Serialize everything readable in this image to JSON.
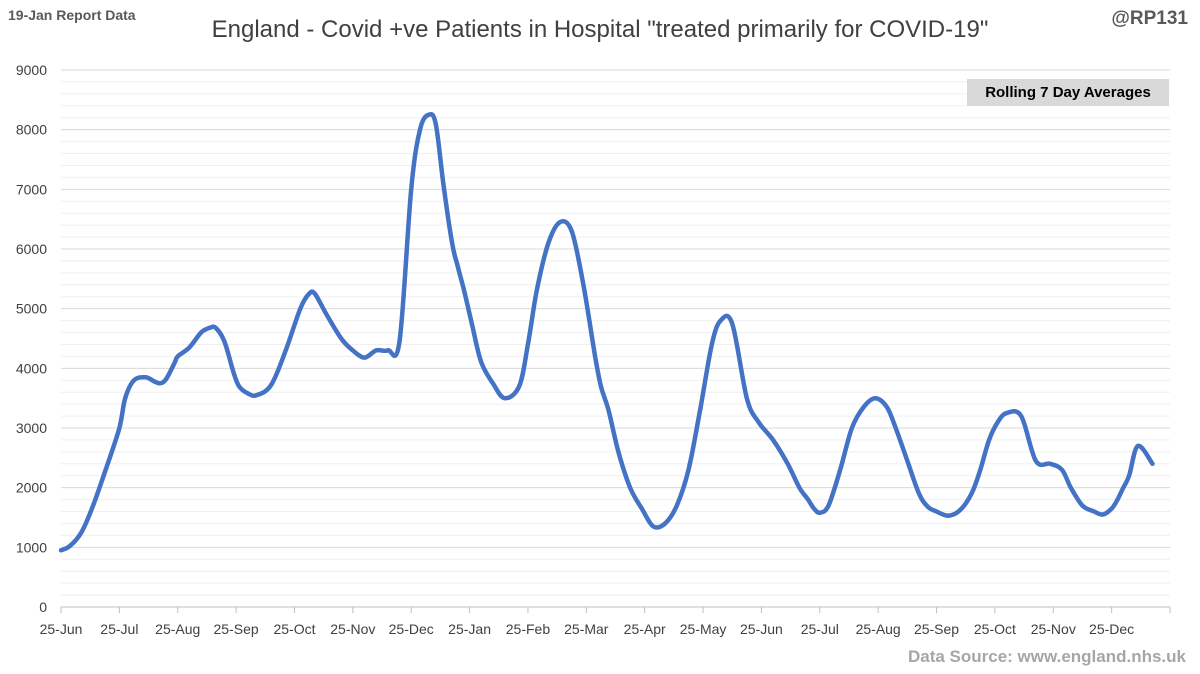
{
  "header": {
    "report_label": "19-Jan Report Data",
    "handle": "@RP131"
  },
  "footer": {
    "source": "Data Source: www.england.nhs.uk"
  },
  "chart_data": {
    "type": "line",
    "title": "England - Covid +ve Patients in Hospital \"treated primarily for COVID-19\"",
    "annotation": "Rolling 7 Day Averages",
    "xlabel": "",
    "ylabel": "",
    "ylim": [
      0,
      9000
    ],
    "y_ticks": [
      0,
      1000,
      2000,
      3000,
      4000,
      5000,
      6000,
      7000,
      8000,
      9000
    ],
    "grid": true,
    "line_color": "#4472c4",
    "x_tick_labels": [
      "25-Jun",
      "25-Jul",
      "25-Aug",
      "25-Sep",
      "25-Oct",
      "25-Nov",
      "25-Dec",
      "25-Jan",
      "25-Feb",
      "25-Mar",
      "25-Apr",
      "25-May",
      "25-Jun",
      "25-Jul",
      "25-Aug",
      "25-Sep",
      "25-Oct",
      "25-Nov",
      "25-Dec"
    ],
    "x_unit": "months since 25-Jun",
    "x_max": 19,
    "series": [
      {
        "name": "Rolling 7 Day Average",
        "x": [
          0,
          0.15,
          0.35,
          0.55,
          0.8,
          1.0,
          1.1,
          1.25,
          1.45,
          1.6,
          1.7,
          1.8,
          1.95,
          2.0,
          2.2,
          2.4,
          2.55,
          2.65,
          2.8,
          2.95,
          3.05,
          3.2,
          3.35,
          3.6,
          3.85,
          4.1,
          4.25,
          4.35,
          4.55,
          4.8,
          5.0,
          5.2,
          5.4,
          5.6,
          5.8,
          6.0,
          6.15,
          6.3,
          6.42,
          6.55,
          6.7,
          6.8,
          6.92,
          7.05,
          7.2,
          7.4,
          7.6,
          7.85,
          8.0,
          8.15,
          8.35,
          8.55,
          8.75,
          8.95,
          9.15,
          9.25,
          9.38,
          9.55,
          9.75,
          9.95,
          10.15,
          10.35,
          10.55,
          10.75,
          10.95,
          11.15,
          11.3,
          11.5,
          11.75,
          11.95,
          12.2,
          12.45,
          12.65,
          12.8,
          12.9,
          13.0,
          13.15,
          13.35,
          13.55,
          13.75,
          13.95,
          14.15,
          14.3,
          14.5,
          14.7,
          14.85,
          15.0,
          15.2,
          15.4,
          15.6,
          15.75,
          15.9,
          16.05,
          16.2,
          16.45,
          16.7,
          16.95,
          17.15,
          17.3,
          17.5,
          17.7,
          17.85,
          18.0,
          18.1,
          18.2,
          18.3,
          18.45,
          18.7
        ],
        "values": [
          950,
          1020,
          1250,
          1700,
          2400,
          3000,
          3500,
          3800,
          3850,
          3780,
          3750,
          3820,
          4100,
          4200,
          4350,
          4600,
          4680,
          4680,
          4450,
          3950,
          3700,
          3580,
          3550,
          3720,
          4300,
          5000,
          5250,
          5250,
          4900,
          4500,
          4300,
          4180,
          4300,
          4300,
          4450,
          7000,
          8000,
          8250,
          8100,
          7100,
          6100,
          5700,
          5250,
          4700,
          4100,
          3750,
          3500,
          3700,
          4400,
          5300,
          6100,
          6450,
          6300,
          5400,
          4200,
          3700,
          3300,
          2600,
          2000,
          1650,
          1350,
          1400,
          1700,
          2300,
          3300,
          4400,
          4800,
          4750,
          3500,
          3100,
          2800,
          2400,
          2000,
          1800,
          1650,
          1580,
          1700,
          2300,
          3000,
          3350,
          3500,
          3350,
          3000,
          2450,
          1900,
          1680,
          1600,
          1530,
          1620,
          1900,
          2300,
          2800,
          3100,
          3250,
          3200,
          2450,
          2400,
          2300,
          2000,
          1700,
          1600,
          1550,
          1650,
          1800,
          2000,
          2200,
          2700,
          2400
        ]
      }
    ]
  }
}
